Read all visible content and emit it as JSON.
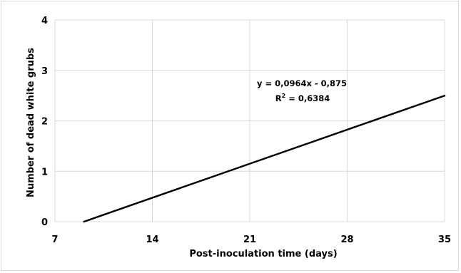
{
  "chart_data": {
    "type": "line",
    "title": "",
    "xlabel": "Post-inoculation time (days)",
    "ylabel": "Number of dead white grubs",
    "xlim": [
      7,
      35
    ],
    "ylim": [
      0,
      4
    ],
    "x_ticks": [
      7,
      14,
      21,
      28,
      35
    ],
    "y_ticks": [
      0,
      1,
      2,
      3,
      4
    ],
    "x_tick_labels": [
      "7",
      "14",
      "21",
      "28",
      "35"
    ],
    "y_tick_labels": [
      "0",
      "1",
      "2",
      "3",
      "4"
    ],
    "grid": "major gridlines on both axes",
    "legend": "none",
    "series": [
      {
        "x": [
          9.08,
          35
        ],
        "y": [
          0,
          2.499
        ],
        "color": "#000000"
      }
    ],
    "annotations": {
      "equation": "y = 0,0964x - 0,875",
      "r2_prefix": "R",
      "r2_sup": "2",
      "r2_value": " = 0,6384"
    }
  }
}
